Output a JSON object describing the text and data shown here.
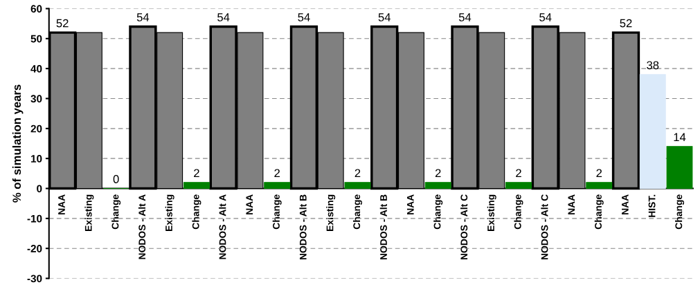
{
  "chart_data": {
    "type": "bar",
    "ylabel": "% of simulation years",
    "categories": [
      "NAA",
      "Existing",
      "Change",
      "NODOS - Alt A",
      "Existing",
      "Change",
      "NODOS - Alt A",
      "NAA",
      "Change",
      "NODOS - Alt B",
      "Existing",
      "Change",
      "NODOS - Alt B",
      "NAA",
      "Change",
      "NODOS - Alt C",
      "Existing",
      "Change",
      "NODOS - Alt C",
      "NAA",
      "Change",
      "NAA",
      "HIST.",
      "Change"
    ],
    "series": [
      {
        "color": "#808080",
        "values": [
          52,
          null,
          null,
          54,
          null,
          null,
          54,
          null,
          null,
          54,
          null,
          null,
          54,
          null,
          null,
          54,
          null,
          null,
          54,
          null,
          null,
          52,
          null,
          null
        ],
        "value_labels": [
          "52",
          null,
          null,
          "54",
          null,
          null,
          "54",
          null,
          null,
          "54",
          null,
          null,
          "54",
          null,
          null,
          "54",
          null,
          null,
          "54",
          null,
          null,
          "52",
          null,
          null
        ]
      },
      {
        "color": "#808080",
        "values": [
          null,
          52,
          null,
          null,
          52,
          null,
          null,
          52,
          null,
          null,
          52,
          null,
          null,
          52,
          null,
          null,
          52,
          null,
          null,
          52,
          null,
          null,
          null,
          null
        ]
      },
      {
        "color": "#008000",
        "values": [
          null,
          null,
          0,
          null,
          null,
          2,
          null,
          null,
          2,
          null,
          null,
          2,
          null,
          null,
          2,
          null,
          null,
          2,
          null,
          null,
          2,
          null,
          null,
          14
        ],
        "value_labels": [
          null,
          null,
          "0",
          null,
          null,
          "2",
          null,
          null,
          "2",
          null,
          null,
          "2",
          null,
          null,
          "2",
          null,
          null,
          "2",
          null,
          null,
          "2",
          null,
          null,
          "14"
        ]
      },
      {
        "color": "#dbeafa",
        "values": [
          null,
          null,
          null,
          null,
          null,
          null,
          null,
          null,
          null,
          null,
          null,
          null,
          null,
          null,
          null,
          null,
          null,
          null,
          null,
          null,
          null,
          null,
          38,
          null
        ],
        "value_labels": [
          null,
          null,
          null,
          null,
          null,
          null,
          null,
          null,
          null,
          null,
          null,
          null,
          null,
          null,
          null,
          null,
          null,
          null,
          null,
          null,
          null,
          null,
          "38",
          null
        ]
      }
    ],
    "ylim": [
      -30,
      60
    ],
    "yticks": [
      -30,
      -20,
      -10,
      0,
      10,
      20,
      30,
      40,
      50,
      60
    ],
    "grid": "y",
    "legend": false
  }
}
